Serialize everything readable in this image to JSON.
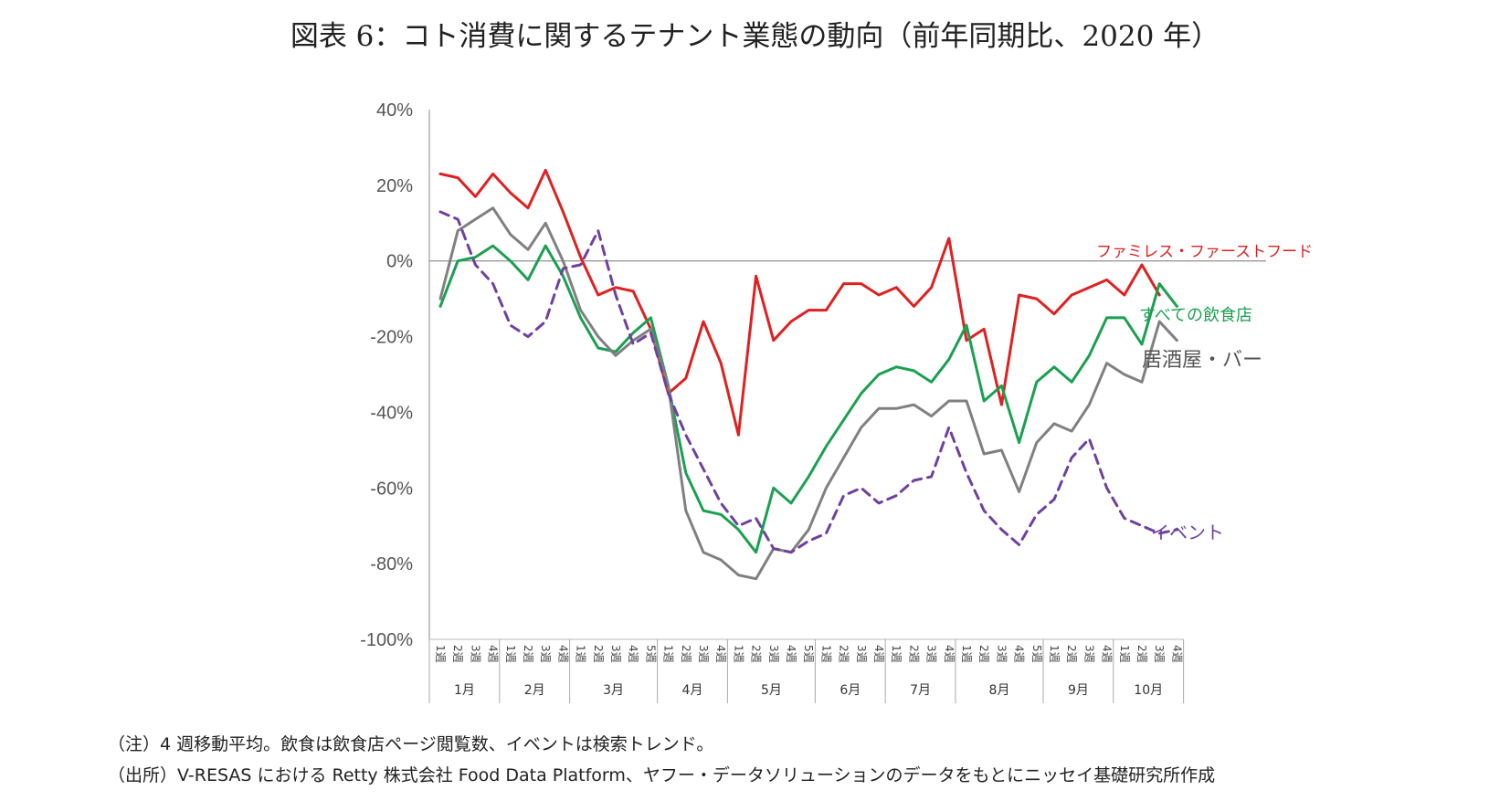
{
  "title": "図表 6：コト消費に関するテナント業態の動向（前年同期比、2020 年）",
  "notes": {
    "note": "（注）4 週移動平均。飲食は飲食店ページ閲覧数、イベントは検索トレンド。",
    "source": "（出所）V-RESAS における Retty 株式会社  Food Data Platform、ヤフー・データソリューションのデータをもとにニッセイ基礎研究所作成"
  },
  "chart_data": {
    "type": "line",
    "title": "図表 6：コト消費に関するテナント業態の動向（前年同期比、2020 年）",
    "xlabel": "",
    "ylabel": "",
    "ylim": [
      -100,
      40
    ],
    "yticks": [
      40,
      20,
      0,
      -20,
      -40,
      -60,
      -80,
      -100
    ],
    "ytick_labels": [
      "40%",
      "20%",
      "0%",
      "-20%",
      "-40%",
      "-60%",
      "-80%",
      "-100%"
    ],
    "grid": false,
    "months": [
      {
        "label": "1月",
        "weeks": 4
      },
      {
        "label": "2月",
        "weeks": 4
      },
      {
        "label": "3月",
        "weeks": 5
      },
      {
        "label": "4月",
        "weeks": 4
      },
      {
        "label": "5月",
        "weeks": 5
      },
      {
        "label": "6月",
        "weeks": 4
      },
      {
        "label": "7月",
        "weeks": 4
      },
      {
        "label": "8月",
        "weeks": 5
      },
      {
        "label": "9月",
        "weeks": 4
      },
      {
        "label": "10月",
        "weeks": 4
      }
    ],
    "week_labels": [
      "1週",
      "2週",
      "3週",
      "4週",
      "1週",
      "2週",
      "3週",
      "4週",
      "1週",
      "2週",
      "3週",
      "4週",
      "5週",
      "1週",
      "2週",
      "3週",
      "4週",
      "1週",
      "2週",
      "3週",
      "4週",
      "5週",
      "1週",
      "2週",
      "3週",
      "4週",
      "1週",
      "2週",
      "3週",
      "4週",
      "1週",
      "2週",
      "3週",
      "4週",
      "5週",
      "1週",
      "2週",
      "3週",
      "4週",
      "1週",
      "2週",
      "3週",
      "4週"
    ],
    "series": [
      {
        "name": "ファミレス・ファーストフード",
        "color": "#e02020",
        "dash": false,
        "values": [
          23,
          22,
          17,
          23,
          18,
          14,
          24,
          13,
          1,
          -9,
          -7,
          -8,
          -18,
          -35,
          -31,
          -16,
          -27,
          -46,
          -4,
          -21,
          -16,
          -13,
          -13,
          -6,
          -6,
          -9,
          -7,
          -12,
          -7,
          6,
          -21,
          -18,
          -38,
          -9,
          -10,
          -14,
          -9,
          -7,
          -5,
          -9,
          -1,
          -9,
          null
        ]
      },
      {
        "name": "すべての飲食店",
        "color": "#1aa050",
        "dash": false,
        "values": [
          -12,
          0,
          1,
          4,
          0,
          -5,
          4,
          -4,
          -15,
          -23,
          -24,
          -19,
          -15,
          -33,
          -56,
          -66,
          -67,
          -71,
          -77,
          -60,
          -64,
          -57,
          -49,
          -42,
          -35,
          -30,
          -28,
          -29,
          -32,
          -26,
          -17,
          -37,
          -33,
          -48,
          -32,
          -28,
          -32,
          -25,
          -15,
          -15,
          -22,
          -6,
          -12
        ]
      },
      {
        "name": "居酒屋・バー",
        "color": "#808080",
        "dash": false,
        "values": [
          -10,
          8,
          11,
          14,
          7,
          3,
          10,
          0,
          -13,
          -20,
          -25,
          -21,
          -18,
          -33,
          -66,
          -77,
          -79,
          -83,
          -84,
          -76,
          -77,
          -71,
          -60,
          -52,
          -44,
          -39,
          -39,
          -38,
          -41,
          -37,
          -37,
          -51,
          -50,
          -61,
          -48,
          -43,
          -45,
          -38,
          -27,
          -30,
          -32,
          -16,
          -21
        ]
      },
      {
        "name": "イベント",
        "color": "#7040a0",
        "dash": true,
        "values": [
          13,
          11,
          -1,
          -6,
          -17,
          -20,
          -16,
          -2,
          -1,
          8,
          -9,
          -22,
          -19,
          -35,
          -46,
          -55,
          -64,
          -70,
          -68,
          -76,
          -77,
          -74,
          -72,
          -62,
          -60,
          -64,
          -62,
          -58,
          -57,
          -44,
          -56,
          -66,
          -71,
          -75,
          -67,
          -63,
          -52,
          -47,
          -60,
          -68,
          -70,
          -72,
          -71
        ]
      }
    ],
    "series_labels": [
      {
        "text": "ファミレス・ファーストフード",
        "color": "#e02020"
      },
      {
        "text": "すべての飲食店",
        "color": "#1aa050"
      },
      {
        "text": "居酒屋・バー",
        "color": "#555555"
      },
      {
        "text": "イベント",
        "color": "#7040a0"
      }
    ]
  }
}
